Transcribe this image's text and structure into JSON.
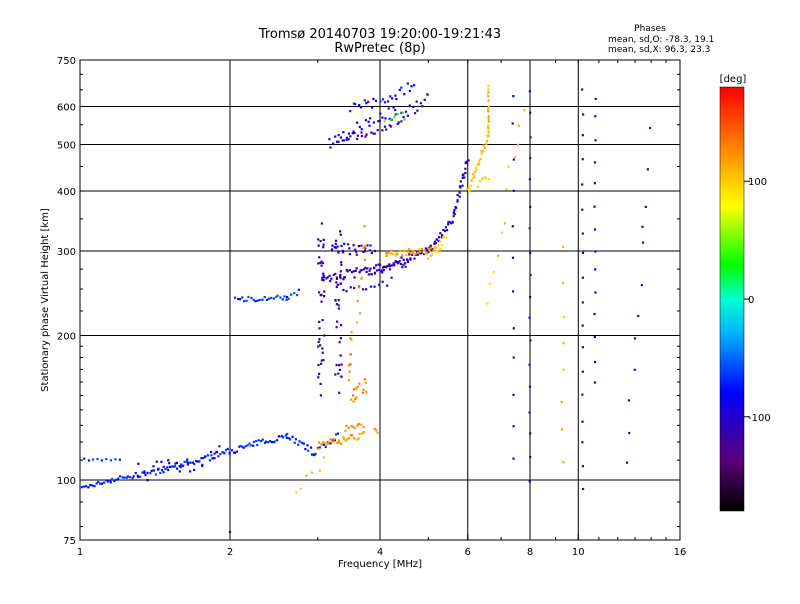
{
  "chart_data": {
    "type": "scatter",
    "title": "Tromsø 20140703 19:20:00-19:21:43",
    "subtitle": "RwPretec (8p)",
    "info": {
      "heading": "Phases",
      "line1": "mean, sd,O: -78.3, 19.1",
      "line2": "mean, sd,X:  96.3, 23.3"
    },
    "xlabel": "Frequency [MHz]",
    "ylabel": "Stationary phase Virtual Height [km]",
    "x_scale": "log",
    "y_scale": "log",
    "xlim": [
      1,
      16
    ],
    "ylim": [
      75,
      750
    ],
    "x_ticks": [
      {
        "v": 1,
        "label": "1"
      },
      {
        "v": 2,
        "label": "2"
      },
      {
        "v": 4,
        "label": "4"
      },
      {
        "v": 6,
        "label": "6"
      },
      {
        "v": 8,
        "label": "8"
      },
      {
        "v": 10,
        "label": "10"
      },
      {
        "v": 16,
        "label": "16"
      }
    ],
    "y_ticks": [
      {
        "v": 75,
        "label": "75"
      },
      {
        "v": 100,
        "label": "100"
      },
      {
        "v": 200,
        "label": "200"
      },
      {
        "v": 300,
        "label": "300"
      },
      {
        "v": 400,
        "label": "400"
      },
      {
        "v": 500,
        "label": "500"
      },
      {
        "v": 600,
        "label": "600"
      },
      {
        "v": 750,
        "label": "750"
      }
    ],
    "grid_x": [
      2,
      4,
      6,
      8,
      10
    ],
    "grid_y": [
      100,
      200,
      300,
      400,
      500,
      600
    ],
    "grid": true,
    "colorbar": {
      "label": "[deg]",
      "range": [
        -180,
        180
      ],
      "ticks": [
        {
          "v": 100,
          "label": "100"
        },
        {
          "v": 0,
          "label": "0"
        },
        {
          "v": -100,
          "label": "-100"
        }
      ]
    },
    "traces": [
      {
        "x0": 1.0,
        "y0": 96,
        "x1": 1.15,
        "y1": 100,
        "n": 16,
        "phase": -75,
        "jit": 0.006
      },
      {
        "x0": 1.15,
        "y0": 100,
        "x1": 1.5,
        "y1": 105,
        "n": 30,
        "phase": -70,
        "jit": 0.008
      },
      {
        "x0": 1.5,
        "y0": 105,
        "x1": 2.0,
        "y1": 115,
        "n": 34,
        "phase": -72,
        "jit": 0.01
      },
      {
        "x0": 2.0,
        "y0": 115,
        "x1": 2.6,
        "y1": 124,
        "n": 34,
        "phase": -70,
        "jit": 0.01
      },
      {
        "x0": 2.6,
        "y0": 124,
        "x1": 2.95,
        "y1": 114,
        "n": 16,
        "phase": -72,
        "jit": 0.01
      },
      {
        "x0": 2.95,
        "y0": 114,
        "x1": 3.3,
        "y1": 124,
        "n": 14,
        "phase": -68,
        "jit": 0.01
      },
      {
        "x0": 1.0,
        "y0": 110,
        "x1": 1.2,
        "y1": 110,
        "n": 10,
        "phase": -65,
        "jit": 0.005
      },
      {
        "x0": 1.3,
        "y0": 104,
        "x1": 1.9,
        "y1": 112,
        "n": 28,
        "phase": -90,
        "jit": 0.035
      },
      {
        "x0": 3.0,
        "y0": 118,
        "x1": 3.7,
        "y1": 124,
        "n": 30,
        "phase": 120,
        "jit": 0.012
      },
      {
        "x0": 3.4,
        "y0": 128,
        "x1": 3.7,
        "y1": 130,
        "n": 10,
        "phase": 125,
        "jit": 0.008
      },
      {
        "x0": 3.9,
        "y0": 128,
        "x1": 3.95,
        "y1": 126,
        "n": 3,
        "phase": 125,
        "jit": 0.004
      },
      {
        "x0": 2.05,
        "y0": 238,
        "x1": 2.6,
        "y1": 240,
        "n": 24,
        "phase": -65,
        "jit": 0.008
      },
      {
        "x0": 2.6,
        "y0": 236,
        "x1": 2.75,
        "y1": 248,
        "n": 6,
        "phase": -65,
        "jit": 0.008
      },
      {
        "x0": 3.05,
        "y0": 160,
        "x1": 3.05,
        "y1": 340,
        "n": 40,
        "phase": -110,
        "jit": 0.05
      },
      {
        "x0": 3.3,
        "y0": 155,
        "x1": 3.3,
        "y1": 330,
        "n": 34,
        "phase": -112,
        "jit": 0.05
      },
      {
        "x0": 3.05,
        "y0": 262,
        "x1": 4.0,
        "y1": 276,
        "n": 40,
        "phase": -108,
        "jit": 0.015
      },
      {
        "x0": 4.0,
        "y0": 276,
        "x1": 5.0,
        "y1": 300,
        "n": 34,
        "phase": -106,
        "jit": 0.012
      },
      {
        "x0": 5.0,
        "y0": 300,
        "x1": 5.6,
        "y1": 350,
        "n": 24,
        "phase": -106,
        "jit": 0.012
      },
      {
        "x0": 5.6,
        "y0": 350,
        "x1": 6.0,
        "y1": 470,
        "n": 26,
        "phase": -104,
        "jit": 0.012
      },
      {
        "x0": 3.2,
        "y0": 300,
        "x1": 3.9,
        "y1": 306,
        "n": 26,
        "phase": -105,
        "jit": 0.02
      },
      {
        "x0": 3.8,
        "y0": 272,
        "x1": 4.6,
        "y1": 285,
        "n": 20,
        "phase": -108,
        "jit": 0.015
      },
      {
        "x0": 3.3,
        "y0": 250,
        "x1": 4.2,
        "y1": 260,
        "n": 14,
        "phase": -105,
        "jit": 0.015
      },
      {
        "x0": 4.1,
        "y0": 295,
        "x1": 5.3,
        "y1": 302,
        "n": 36,
        "phase": 115,
        "jit": 0.012
      },
      {
        "x0": 5.0,
        "y0": 290,
        "x1": 5.4,
        "y1": 320,
        "n": 10,
        "phase": 95,
        "jit": 0.012
      },
      {
        "x0": 3.5,
        "y0": 150,
        "x1": 3.75,
        "y1": 160,
        "n": 14,
        "phase": 125,
        "jit": 0.03
      },
      {
        "x0": 3.45,
        "y0": 165,
        "x1": 3.5,
        "y1": 200,
        "n": 10,
        "phase": 125,
        "jit": 0.02
      },
      {
        "x0": 3.6,
        "y0": 215,
        "x1": 3.75,
        "y1": 325,
        "n": 10,
        "phase": 120,
        "jit": 0.03
      },
      {
        "x0": 6.0,
        "y0": 400,
        "x1": 6.6,
        "y1": 520,
        "n": 24,
        "phase": 105,
        "jit": 0.01
      },
      {
        "x0": 6.6,
        "y0": 520,
        "x1": 6.6,
        "y1": 660,
        "n": 20,
        "phase": 108,
        "jit": 0.006
      },
      {
        "x0": 6.3,
        "y0": 410,
        "x1": 6.6,
        "y1": 430,
        "n": 6,
        "phase": 100,
        "jit": 0.012
      },
      {
        "x0": 3.15,
        "y0": 505,
        "x1": 4.2,
        "y1": 555,
        "n": 30,
        "phase": -110,
        "jit": 0.02
      },
      {
        "x0": 4.2,
        "y0": 555,
        "x1": 5.0,
        "y1": 625,
        "n": 20,
        "phase": -108,
        "jit": 0.02
      },
      {
        "x0": 3.5,
        "y0": 590,
        "x1": 4.7,
        "y1": 660,
        "n": 26,
        "phase": -80,
        "jit": 0.02
      },
      {
        "x0": 3.3,
        "y0": 520,
        "x1": 4.3,
        "y1": 600,
        "n": 20,
        "phase": -95,
        "jit": 0.025
      },
      {
        "x0": 4.1,
        "y0": 560,
        "x1": 4.5,
        "y1": 580,
        "n": 6,
        "phase": 40,
        "jit": 0.02
      },
      {
        "x0": 8.0,
        "y0": 100,
        "x1": 8.0,
        "y1": 650,
        "n": 18,
        "phase": -105,
        "jit": 0.008
      },
      {
        "x0": 10.2,
        "y0": 95,
        "x1": 10.2,
        "y1": 650,
        "n": 18,
        "phase": -105,
        "jit": 0.008
      },
      {
        "x0": 10.8,
        "y0": 160,
        "x1": 10.8,
        "y1": 630,
        "n": 14,
        "phase": -90,
        "jit": 0.01
      },
      {
        "x0": 7.4,
        "y0": 110,
        "x1": 7.4,
        "y1": 640,
        "n": 12,
        "phase": -100,
        "jit": 0.01
      },
      {
        "x0": 9.3,
        "y0": 110,
        "x1": 9.3,
        "y1": 300,
        "n": 8,
        "phase": 110,
        "jit": 0.02
      },
      {
        "x0": 6.6,
        "y0": 230,
        "x1": 7.8,
        "y1": 600,
        "n": 12,
        "phase": 105,
        "jit": 0.05
      },
      {
        "x0": 12.5,
        "y0": 110,
        "x1": 14.0,
        "y1": 520,
        "n": 12,
        "phase": -100,
        "jit": 0.04
      },
      {
        "x0": 2.7,
        "y0": 95,
        "x1": 3.1,
        "y1": 110,
        "n": 6,
        "phase": 110,
        "jit": 0.02
      },
      {
        "x0": 2.0,
        "y0": 78,
        "x1": 2.0,
        "y1": 80,
        "n": 1,
        "phase": -140,
        "jit": 0.002
      }
    ]
  }
}
